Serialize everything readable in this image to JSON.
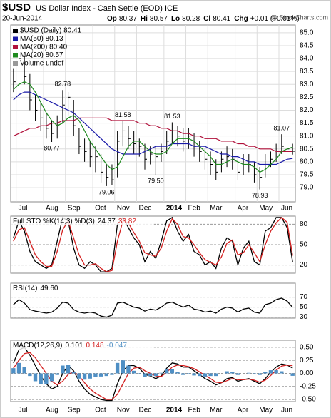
{
  "chart_data": [
    {
      "type": "ohlc",
      "title": "$USD",
      "subtitle": "US Dollar Index - Cash Settle (EOD) ICE",
      "date": "20-Jun-2014",
      "quote": [
        {
          "label": "Op",
          "value": 80.37
        },
        {
          "label": "Hi",
          "value": 80.57
        },
        {
          "label": "Lo",
          "value": 80.28
        },
        {
          "label": "Cl",
          "value": 80.41
        },
        {
          "label": "Chg",
          "value": "+0.01 (+0.01%)"
        }
      ],
      "credit": "@ StockCharts.com",
      "volume_label": "Volume undef",
      "categories": [
        null,
        "Jul",
        null,
        null,
        null,
        null,
        "Aug",
        null,
        null,
        null,
        "Sep",
        null,
        null,
        null,
        null,
        "Oct",
        null,
        null,
        null,
        "Nov",
        null,
        null,
        null,
        "Dec",
        null,
        null,
        null,
        null,
        "2014",
        null,
        null,
        null,
        "Feb",
        null,
        null,
        null,
        "Mar",
        null,
        null,
        null,
        null,
        "Apr",
        null,
        null,
        null,
        "May",
        null,
        null,
        null,
        "Jun",
        null,
        null
      ],
      "ylim": [
        78.45,
        85.3
      ],
      "yticks": [
        {
          "value": 79,
          "label": "79.0"
        },
        79.5,
        {
          "value": 80,
          "label": "80.0"
        },
        80.5,
        {
          "value": 81,
          "label": "81.0"
        },
        81.5,
        {
          "value": 82,
          "label": "82.0"
        },
        82.5,
        {
          "value": 83,
          "label": "83.0"
        },
        83.5,
        {
          "value": 84,
          "label": "84.0"
        },
        84.5,
        {
          "value": 85,
          "label": "85.0"
        }
      ],
      "grid": true,
      "annotations": [
        {
          "text": "82.78",
          "value": 82.78
        },
        {
          "text": "80.77",
          "value": 80.77
        },
        {
          "text": "81.58",
          "value": 81.58
        },
        {
          "text": "79.06",
          "value": 79.06
        },
        {
          "text": "79.50",
          "value": 79.5
        },
        {
          "text": "81.53",
          "value": 81.53
        },
        {
          "text": "78.93",
          "value": 78.93
        },
        {
          "text": "81.07",
          "value": 81.07
        }
      ],
      "series": [
        {
          "name": "$USD (Daily) 80.41",
          "color": "#000000",
          "high": [
            83.6,
            84.5,
            84.1,
            83.4,
            82.6,
            82.3,
            81.9,
            81.6,
            81.8,
            82.78,
            82.7,
            82.4,
            81.3,
            80.9,
            80.8,
            80.6,
            80.3,
            79.9,
            79.9,
            81.2,
            81.58,
            81.4,
            81.2,
            80.9,
            80.7,
            80.6,
            80.6,
            80.7,
            81.2,
            81.53,
            81.4,
            81.3,
            81.3,
            81.1,
            80.8,
            80.5,
            80.4,
            80.1,
            80.4,
            80.6,
            80.5,
            80.2,
            80.3,
            80.3,
            80.0,
            79.8,
            80.3,
            80.4,
            80.7,
            81.07,
            81.0,
            80.7
          ],
          "low": [
            82.7,
            83.5,
            83.0,
            82.0,
            81.6,
            81.2,
            80.9,
            80.77,
            80.9,
            81.5,
            81.8,
            81.0,
            80.3,
            80.0,
            79.8,
            79.6,
            79.2,
            79.06,
            79.1,
            79.4,
            80.6,
            80.5,
            80.3,
            80.2,
            79.7,
            79.9,
            79.5,
            80.0,
            80.3,
            80.7,
            80.6,
            80.4,
            80.5,
            80.2,
            80.0,
            79.7,
            79.5,
            79.3,
            79.6,
            79.8,
            79.7,
            79.3,
            79.5,
            79.6,
            79.2,
            78.93,
            79.4,
            79.8,
            80.0,
            80.3,
            80.2,
            80.28
          ],
          "values": [
            83.1,
            84.0,
            83.3,
            82.4,
            82.0,
            81.7,
            81.3,
            81.1,
            81.4,
            82.2,
            82.5,
            81.4,
            80.6,
            80.4,
            80.2,
            80.2,
            79.6,
            79.4,
            79.3,
            80.8,
            81.2,
            80.9,
            80.7,
            80.6,
            80.1,
            80.3,
            80.2,
            80.4,
            80.8,
            81.2,
            81.0,
            80.8,
            81.0,
            80.6,
            80.4,
            80.1,
            79.9,
            79.6,
            80.1,
            80.2,
            80.1,
            79.6,
            79.9,
            79.9,
            79.5,
            79.4,
            79.9,
            80.1,
            80.4,
            80.6,
            80.5,
            80.41
          ]
        },
        {
          "name": "MA(50) 80.13",
          "color": "#1a1aa8",
          "values": [
            82.4,
            82.6,
            82.7,
            82.7,
            82.6,
            82.5,
            82.4,
            82.3,
            82.2,
            82.1,
            82.0,
            81.9,
            81.7,
            81.5,
            81.3,
            81.1,
            80.9,
            80.7,
            80.5,
            80.4,
            80.3,
            80.3,
            80.3,
            80.3,
            80.4,
            80.5,
            80.6,
            80.6,
            80.6,
            80.7,
            80.7,
            80.7,
            80.7,
            80.6,
            80.6,
            80.6,
            80.5,
            80.4,
            80.3,
            80.3,
            80.2,
            80.2,
            80.1,
            80.0,
            80.0,
            79.9,
            79.9,
            79.9,
            79.9,
            80.0,
            80.1,
            80.13
          ]
        },
        {
          "name": "MA(200) 80.40",
          "color": "#b0103a",
          "values": [
            81.0,
            81.1,
            81.2,
            81.3,
            81.3,
            81.4,
            81.4,
            81.5,
            81.5,
            81.6,
            81.6,
            81.6,
            81.7,
            81.7,
            81.7,
            81.7,
            81.7,
            81.7,
            81.6,
            81.6,
            81.6,
            81.6,
            81.6,
            81.5,
            81.5,
            81.4,
            81.4,
            81.3,
            81.3,
            81.2,
            81.2,
            81.1,
            81.1,
            81.0,
            81.0,
            80.9,
            80.9,
            80.9,
            80.8,
            80.8,
            80.8,
            80.7,
            80.7,
            80.6,
            80.6,
            80.5,
            80.5,
            80.5,
            80.4,
            80.4,
            80.4,
            80.4
          ]
        },
        {
          "name": "MA(20) 80.57",
          "color": "#1e8a1e",
          "values": [
            82.8,
            83.0,
            83.1,
            83.0,
            82.7,
            82.3,
            81.9,
            81.6,
            81.4,
            81.5,
            81.7,
            81.8,
            81.6,
            81.2,
            80.8,
            80.5,
            80.2,
            79.9,
            79.7,
            79.8,
            80.2,
            80.6,
            80.8,
            80.8,
            80.6,
            80.4,
            80.3,
            80.3,
            80.4,
            80.7,
            80.9,
            80.9,
            80.9,
            80.8,
            80.6,
            80.4,
            80.2,
            79.9,
            79.9,
            80.0,
            80.1,
            80.0,
            79.9,
            79.9,
            79.8,
            79.6,
            79.7,
            79.9,
            80.1,
            80.4,
            80.5,
            80.57
          ]
        }
      ]
    },
    {
      "type": "line",
      "title": "Full STO %K(14,3) %D(3)",
      "ylim": [
        8,
        92
      ],
      "yticks": [
        20,
        50,
        80
      ],
      "grid": true,
      "series": [
        {
          "name": "24.37",
          "color": "#000000",
          "values": [
            60,
            85,
            70,
            40,
            25,
            20,
            15,
            20,
            55,
            90,
            85,
            45,
            20,
            15,
            25,
            20,
            10,
            10,
            15,
            80,
            90,
            75,
            60,
            50,
            25,
            40,
            30,
            55,
            85,
            90,
            70,
            55,
            65,
            40,
            35,
            20,
            25,
            15,
            45,
            60,
            55,
            20,
            45,
            55,
            25,
            20,
            70,
            75,
            90,
            90,
            75,
            24.37
          ]
        },
        {
          "name": "33.82",
          "color": "#d42020",
          "values": [
            55,
            72,
            75,
            55,
            35,
            25,
            18,
            18,
            40,
            72,
            85,
            60,
            35,
            20,
            20,
            22,
            15,
            10,
            12,
            55,
            85,
            82,
            68,
            55,
            38,
            35,
            33,
            45,
            70,
            88,
            80,
            62,
            60,
            50,
            38,
            28,
            24,
            20,
            32,
            52,
            57,
            35,
            38,
            50,
            38,
            25,
            50,
            70,
            82,
            90,
            83,
            33.82
          ]
        }
      ]
    },
    {
      "type": "line",
      "title": "RSI(14)",
      "ylim": [
        28,
        98
      ],
      "yticks": [
        30,
        50,
        70
      ],
      "grid": true,
      "series": [
        {
          "name": "49.60",
          "color": "#000000",
          "values": [
            55,
            65,
            58,
            45,
            42,
            40,
            38,
            40,
            48,
            60,
            58,
            45,
            40,
            38,
            40,
            38,
            32,
            30,
            34,
            58,
            60,
            55,
            50,
            48,
            42,
            46,
            44,
            50,
            58,
            60,
            55,
            50,
            54,
            46,
            44,
            40,
            42,
            38,
            46,
            50,
            48,
            40,
            46,
            48,
            40,
            38,
            55,
            58,
            65,
            68,
            62,
            49.6
          ]
        }
      ]
    },
    {
      "type": "line",
      "title": "MACD(12,26,9)",
      "ylim": [
        -0.54,
        0.635
      ],
      "yticks": [
        {
          "value": -0.5,
          "label": "-0.50"
        },
        -0.25,
        {
          "value": 0,
          "label": "0.00"
        },
        0.25,
        {
          "value": 0.5,
          "label": "0.50"
        }
      ],
      "grid": true,
      "series": [
        {
          "name": "0.101",
          "color": "#000000",
          "values": [
            0.2,
            0.45,
            0.5,
            0.35,
            0.15,
            -0.05,
            -0.2,
            -0.3,
            -0.25,
            0.0,
            0.15,
            0.05,
            -0.15,
            -0.3,
            -0.4,
            -0.45,
            -0.5,
            -0.52,
            -0.52,
            -0.2,
            0.05,
            0.15,
            0.15,
            0.1,
            -0.02,
            -0.05,
            -0.1,
            -0.05,
            0.1,
            0.2,
            0.18,
            0.12,
            0.12,
            0.05,
            -0.02,
            -0.1,
            -0.15,
            -0.22,
            -0.18,
            -0.1,
            -0.08,
            -0.15,
            -0.12,
            -0.1,
            -0.15,
            -0.2,
            -0.1,
            0.02,
            0.12,
            0.18,
            0.16,
            0.101
          ]
        },
        {
          "name": "0.148",
          "color": "#d42020",
          "values": [
            0.1,
            0.25,
            0.38,
            0.4,
            0.3,
            0.15,
            0.0,
            -0.15,
            -0.22,
            -0.15,
            -0.02,
            0.03,
            -0.05,
            -0.18,
            -0.3,
            -0.38,
            -0.44,
            -0.5,
            -0.5,
            -0.4,
            -0.2,
            0.0,
            0.1,
            0.12,
            0.05,
            0.0,
            -0.05,
            -0.06,
            0.02,
            0.12,
            0.16,
            0.15,
            0.13,
            0.09,
            0.03,
            -0.04,
            -0.1,
            -0.17,
            -0.18,
            -0.14,
            -0.1,
            -0.12,
            -0.12,
            -0.11,
            -0.13,
            -0.17,
            -0.13,
            -0.04,
            0.06,
            0.14,
            0.16,
            0.148
          ]
        },
        {
          "name": "-0.047",
          "color": "#4f8fc4",
          "type": "bar",
          "values": [
            0.1,
            0.2,
            0.12,
            -0.05,
            -0.15,
            -0.2,
            -0.2,
            -0.15,
            -0.03,
            0.15,
            0.17,
            0.02,
            -0.1,
            -0.12,
            -0.1,
            -0.07,
            -0.06,
            -0.05,
            -0.03,
            0.2,
            0.25,
            0.15,
            0.05,
            -0.02,
            -0.07,
            -0.05,
            -0.05,
            0.01,
            0.08,
            0.08,
            0.02,
            -0.03,
            -0.01,
            -0.04,
            -0.05,
            -0.06,
            -0.05,
            -0.05,
            0.0,
            0.04,
            0.02,
            -0.03,
            0.0,
            0.01,
            -0.02,
            -0.03,
            0.03,
            0.06,
            0.06,
            0.04,
            0.0,
            -0.047
          ]
        }
      ]
    }
  ]
}
